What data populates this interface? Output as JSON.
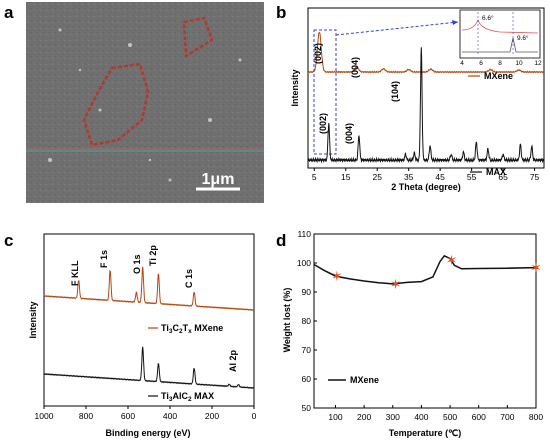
{
  "panels": {
    "a": {
      "letter": "a",
      "scale_bar": "1μm"
    },
    "b": {
      "letter": "b"
    },
    "c": {
      "letter": "c"
    },
    "d": {
      "letter": "d"
    }
  },
  "colors": {
    "mxene": "#b5470e",
    "max": "#111111",
    "sem_bg": "#6e6e6e",
    "outline": "#b03a2e",
    "marker": "#e04a1c",
    "highlight": "#3b3fd1",
    "sem_line_cyan": "#2ec4b6",
    "sem_line_red": "#e05555"
  },
  "chart_data": [
    {
      "panel": "b",
      "type": "line",
      "xlabel": "2 Theta (degree)",
      "ylabel": "Intensity",
      "xlim": [
        3,
        78
      ],
      "xticks": [
        5,
        15,
        25,
        35,
        45,
        55,
        65,
        75
      ],
      "legend": [
        {
          "name": "MXene",
          "color": "#b5470e"
        },
        {
          "name": "MAX",
          "color": "#111111"
        }
      ],
      "annotations": [
        "(002)",
        "(004)",
        "(002)",
        "(004)",
        "(104)"
      ],
      "series": [
        {
          "name": "MXene",
          "color": "#b5470e",
          "peaks": [
            [
              6.6,
              1.0
            ],
            [
              18.5,
              0.12
            ],
            [
              27,
              0.08
            ],
            [
              35,
              0.06
            ],
            [
              42,
              0.07
            ],
            [
              61,
              0.06
            ],
            [
              70,
              0.05
            ]
          ]
        },
        {
          "name": "MAX",
          "color": "#111111",
          "peaks": [
            [
              9.6,
              0.33
            ],
            [
              19.2,
              0.22
            ],
            [
              34,
              0.05
            ],
            [
              36.8,
              0.06
            ],
            [
              39,
              1.0
            ],
            [
              41.8,
              0.13
            ],
            [
              48.5,
              0.05
            ],
            [
              52.4,
              0.07
            ],
            [
              56.5,
              0.16
            ],
            [
              60.2,
              0.1
            ],
            [
              65,
              0.05
            ],
            [
              70.5,
              0.14
            ],
            [
              74.1,
              0.12
            ]
          ]
        }
      ],
      "inset": {
        "xlim": [
          4,
          12
        ],
        "xticks": [
          4,
          6,
          8,
          10,
          12
        ],
        "labels": [
          "6.6°",
          "9.6°"
        ]
      }
    },
    {
      "panel": "c",
      "type": "line",
      "xlabel": "Binding energy (eV)",
      "ylabel": "Intensity",
      "xlim": [
        1000,
        0
      ],
      "xticks": [
        1000,
        800,
        600,
        400,
        200,
        0
      ],
      "legend": [
        {
          "name": "Ti3C2Tx MXene",
          "color": "#b5470e"
        },
        {
          "name": "Ti3AlC2 MAX",
          "color": "#111111"
        }
      ],
      "legend_parts": {
        "mxene": {
          "a": "Ti",
          "a_sub": "3",
          "b": "C",
          "b_sub": "2",
          "c": "T",
          "c_sub": "x",
          "d": " MXene"
        },
        "max": {
          "a": "Ti",
          "a_sub": "3",
          "b": "AlC",
          "b_sub": "2",
          "c": " MAX"
        }
      },
      "annotations": [
        "F KLL",
        "F 1s",
        "O 1s",
        "Ti 2p",
        "C 1s",
        "Al 2p"
      ],
      "series": [
        {
          "name": "MXene",
          "color": "#b5470e",
          "peaks": [
            [
              835,
              0.45
            ],
            [
              685,
              0.75
            ],
            [
              560,
              0.25
            ],
            [
              530,
              0.9
            ],
            [
              455,
              0.75
            ],
            [
              285,
              0.35
            ]
          ]
        },
        {
          "name": "MAX",
          "color": "#111111",
          "peaks": [
            [
              530,
              0.85
            ],
            [
              455,
              0.45
            ],
            [
              285,
              0.4
            ],
            [
              118,
              0.05
            ],
            [
              74,
              0.06
            ]
          ]
        }
      ]
    },
    {
      "panel": "d",
      "type": "line",
      "xlabel": "Temperature (℃)",
      "ylabel": "Weight lost (%)",
      "xlim": [
        25,
        800
      ],
      "ylim": [
        50,
        110
      ],
      "xticks": [
        100,
        200,
        300,
        400,
        500,
        600,
        700,
        800
      ],
      "yticks": [
        50,
        60,
        70,
        80,
        90,
        100,
        110
      ],
      "legend": [
        {
          "name": "MXene",
          "color": "#111111"
        }
      ],
      "series": [
        {
          "name": "MXene",
          "x": [
            25,
            60,
            100,
            150,
            200,
            250,
            300,
            350,
            400,
            440,
            465,
            480,
            500,
            515,
            540,
            600,
            700,
            800
          ],
          "y": [
            99.5,
            97.5,
            95.5,
            94.5,
            93.8,
            93.2,
            92.8,
            93.3,
            93.6,
            95.2,
            100.5,
            102.5,
            101.5,
            99.2,
            98.0,
            98.1,
            98.2,
            98.4
          ]
        }
      ],
      "markers": [
        [
          105,
          95.6
        ],
        [
          310,
          92.8
        ],
        [
          505,
          101.0
        ],
        [
          800,
          98.4
        ]
      ]
    }
  ]
}
